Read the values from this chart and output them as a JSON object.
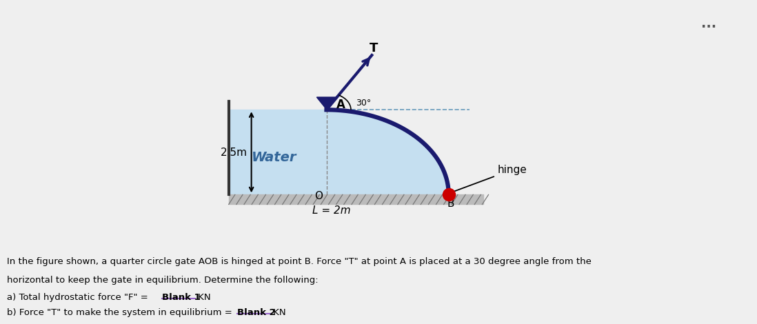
{
  "bg_color": "#efefef",
  "diagram_bg": "#ffffff",
  "water_color": "#c5dff0",
  "gate_color": "#1a1a6e",
  "hinge_color": "#cc0000",
  "ground_color": "#aaaaaa",
  "water_label": "Water",
  "water_depth_label": "2.5m",
  "length_label": "L = 2m",
  "hinge_label": "hinge",
  "angle_label": "30°",
  "T_label": "T",
  "A_label": "A",
  "O_label": "O",
  "B_label": "B",
  "text_line1": "In the figure shown, a quarter circle gate AOB is hinged at point B. Force \"T\" at point A is placed at a 30 degree angle from the",
  "text_line2": "horizontal to keep the gate in equilibrium. Determine the following:",
  "text_line3a": "a) Total hydrostatic force \"F\" = ",
  "text_line3b": "Blank 1",
  "text_line3c": " KN",
  "text_line4a": "b) Force \"T\" to make the system in equilibrium = ",
  "text_line4b": "Blank 2",
  "text_line4c": " KN",
  "dots": "...",
  "underline_color": "#9966cc"
}
